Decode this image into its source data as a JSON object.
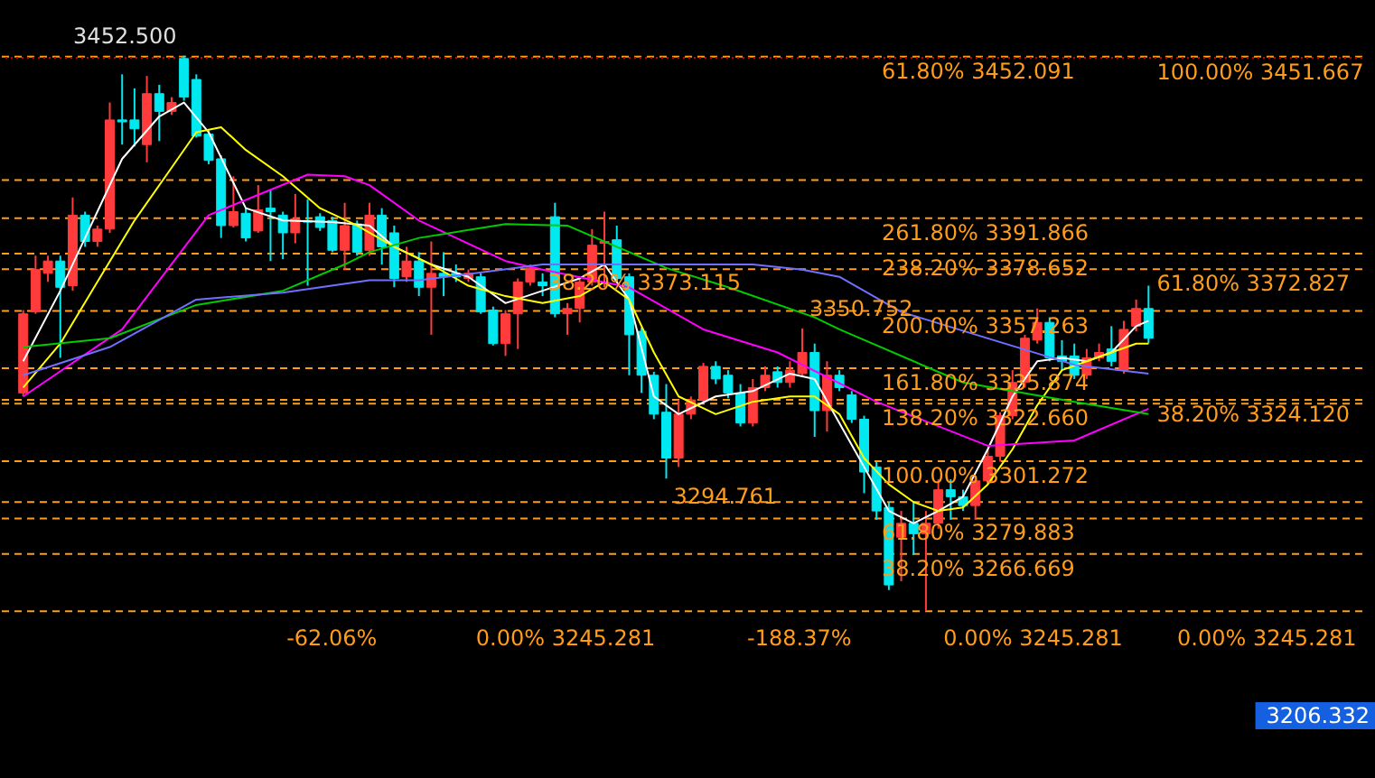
{
  "chart_data": {
    "type": "candlestick",
    "categories": [
      null,
      null,
      null,
      null,
      null,
      null,
      null,
      null,
      null,
      null,
      null,
      null,
      null,
      null,
      null,
      null,
      null,
      null,
      null,
      null,
      null,
      null,
      null,
      null,
      null,
      null,
      null,
      null,
      null,
      null,
      null,
      null,
      null,
      null,
      null,
      null,
      null,
      null,
      null,
      null,
      null,
      null,
      null,
      null,
      null,
      null,
      null,
      null,
      null,
      null,
      null,
      null,
      null,
      null,
      null,
      null,
      null,
      null,
      null,
      null,
      null,
      null,
      null,
      null,
      null,
      null,
      null,
      null,
      null,
      null,
      null,
      null,
      null,
      null,
      null,
      null,
      null,
      null,
      null,
      null,
      null,
      null,
      null,
      null,
      null,
      null,
      null,
      null,
      null,
      null,
      null,
      null
    ],
    "ohlc": [
      [
        3326.7,
        3357.6,
        3325.4,
        3356.2
      ],
      [
        3356.9,
        3377.9,
        3356.2,
        3372.7
      ],
      [
        3371.3,
        3377.9,
        3368.1,
        3375.9
      ],
      [
        3375.9,
        3377.9,
        3339.8,
        3366.1
      ],
      [
        3366.7,
        3399.6,
        3364.8,
        3393.0
      ],
      [
        3393.0,
        3394.3,
        3381.2,
        3383.2
      ],
      [
        3383.2,
        3389.1,
        3381.2,
        3387.8
      ],
      [
        3387.8,
        3435.0,
        3386.4,
        3428.5
      ],
      [
        3428.5,
        3445.5,
        3419.3,
        3427.8
      ],
      [
        3428.5,
        3440.3,
        3418.6,
        3425.2
      ],
      [
        3419.3,
        3444.9,
        3412.7,
        3438.3
      ],
      [
        3438.3,
        3441.6,
        3420.6,
        3431.7
      ],
      [
        3431.7,
        3437.0,
        3430.4,
        3435.0
      ],
      [
        3451.4,
        3452.5,
        3435.7,
        3437.0
      ],
      [
        3443.6,
        3445.5,
        3421.9,
        3422.5
      ],
      [
        3423.2,
        3424.5,
        3412.0,
        3413.4
      ],
      [
        3414.0,
        3415.3,
        3384.5,
        3389.1
      ],
      [
        3389.1,
        3407.5,
        3388.4,
        3394.3
      ],
      [
        3393.7,
        3395.6,
        3383.2,
        3384.5
      ],
      [
        3387.1,
        3404.2,
        3386.4,
        3395.0
      ],
      [
        3395.6,
        3402.2,
        3375.9,
        3394.3
      ],
      [
        3393.0,
        3394.3,
        3376.6,
        3386.4
      ],
      [
        3386.4,
        3400.9,
        3382.5,
        3391.7
      ],
      [
        3391.0,
        3398.9,
        3366.7,
        3390.4
      ],
      [
        3392.4,
        3393.7,
        3387.1,
        3388.4
      ],
      [
        3391.0,
        3392.4,
        3379.2,
        3379.9
      ],
      [
        3379.9,
        3397.6,
        3372.7,
        3389.1
      ],
      [
        3389.7,
        3391.0,
        3377.9,
        3379.2
      ],
      [
        3379.9,
        3397.6,
        3377.9,
        3393.0
      ],
      [
        3393.0,
        3395.6,
        3374.6,
        3381.2
      ],
      [
        3386.4,
        3389.1,
        3366.1,
        3369.4
      ],
      [
        3370.0,
        3381.2,
        3368.1,
        3375.9
      ],
      [
        3375.9,
        3379.2,
        3362.8,
        3366.1
      ],
      [
        3366.1,
        3383.2,
        3348.4,
        3371.3
      ],
      [
        3371.3,
        3379.2,
        3362.8,
        3370.0
      ],
      [
        3371.3,
        3374.6,
        3368.1,
        3370.0
      ],
      [
        3369.4,
        3372.7,
        3368.1,
        3371.3
      ],
      [
        3370.0,
        3371.3,
        3356.2,
        3356.9
      ],
      [
        3357.6,
        3358.9,
        3344.4,
        3345.1
      ],
      [
        3345.1,
        3357.6,
        3340.5,
        3356.2
      ],
      [
        3356.2,
        3369.4,
        3343.1,
        3368.1
      ],
      [
        3368.1,
        3374.6,
        3366.7,
        3373.3
      ],
      [
        3368.1,
        3371.3,
        3362.8,
        3366.7
      ],
      [
        3392.4,
        3397.6,
        3354.9,
        3356.2
      ],
      [
        3356.2,
        3360.2,
        3348.4,
        3358.2
      ],
      [
        3358.2,
        3369.4,
        3353.0,
        3368.1
      ],
      [
        3368.1,
        3387.8,
        3366.7,
        3381.8
      ],
      [
        3382.5,
        3394.3,
        3366.1,
        3383.2
      ],
      [
        3383.8,
        3389.1,
        3368.1,
        3369.4
      ],
      [
        3370.0,
        3371.3,
        3333.3,
        3348.4
      ],
      [
        3349.7,
        3351.0,
        3326.7,
        3333.3
      ],
      [
        3333.3,
        3334.6,
        3316.9,
        3318.8
      ],
      [
        3319.5,
        3330.0,
        3294.761,
        3302.4
      ],
      [
        3302.4,
        3324.1,
        3299.1,
        3318.8
      ],
      [
        3318.8,
        3325.4,
        3316.9,
        3324.1
      ],
      [
        3324.1,
        3337.9,
        3322.8,
        3336.6
      ],
      [
        3336.6,
        3338.5,
        3330.0,
        3331.9
      ],
      [
        3333.3,
        3335.2,
        3324.7,
        3326.7
      ],
      [
        3326.7,
        3330.0,
        3314.2,
        3315.5
      ],
      [
        3315.5,
        3331.9,
        3314.2,
        3328.7
      ],
      [
        3328.7,
        3336.6,
        3327.4,
        3333.3
      ],
      [
        3334.6,
        3336.6,
        3328.7,
        3330.6
      ],
      [
        3330.6,
        3338.5,
        3328.7,
        3335.2
      ],
      [
        3333.9,
        3350.752,
        3332.6,
        3341.8
      ],
      [
        3341.8,
        3345.1,
        3310.3,
        3320.1
      ],
      [
        3320.1,
        3338.5,
        3312.3,
        3333.3
      ],
      [
        3333.3,
        3335.2,
        3327.4,
        3328.7
      ],
      [
        3326.0,
        3327.4,
        3315.5,
        3316.9
      ],
      [
        3316.9,
        3318.2,
        3289.3,
        3297.2
      ],
      [
        3299.1,
        3301.1,
        3279.4,
        3282.7
      ],
      [
        3284.0,
        3286.0,
        3253.2,
        3255.1
      ],
      [
        3272.9,
        3282.7,
        3256.5,
        3278.1
      ],
      [
        3278.1,
        3286.0,
        3266.3,
        3274.2
      ],
      [
        3274.2,
        3282.7,
        3245.281,
        3278.1
      ],
      [
        3278.1,
        3294.5,
        3276.1,
        3290.6
      ],
      [
        3290.6,
        3294.5,
        3279.4,
        3288.0
      ],
      [
        3288.0,
        3290.6,
        3282.7,
        3284.7
      ],
      [
        3284.7,
        3295.8,
        3279.4,
        3293.9
      ],
      [
        3293.9,
        3305.7,
        3292.6,
        3303.1
      ],
      [
        3303.1,
        3319.5,
        3301.1,
        3318.2
      ],
      [
        3318.2,
        3335.2,
        3316.9,
        3330.6
      ],
      [
        3330.6,
        3348.4,
        3328.7,
        3347.1
      ],
      [
        3346.4,
        3358.2,
        3345.1,
        3353.0
      ],
      [
        3353.0,
        3354.9,
        3338.5,
        3339.8
      ],
      [
        3340.5,
        3346.4,
        3335.2,
        3338.5
      ],
      [
        3340.5,
        3345.1,
        3331.9,
        3333.3
      ],
      [
        3333.3,
        3343.1,
        3331.9,
        3339.8
      ],
      [
        3339.8,
        3345.1,
        3338.5,
        3341.8
      ],
      [
        3343.1,
        3351.6,
        3336.6,
        3338.5
      ],
      [
        3335.2,
        3353.6,
        3333.9,
        3350.4
      ],
      [
        3351.6,
        3361.5,
        3349.7,
        3358.2
      ],
      [
        3358.2,
        3366.7,
        3345.1,
        3347.1
      ]
    ],
    "colors": [
      "#ff3b3b",
      "#ff3b3b",
      "#ff3b3b",
      "#00e8f0",
      "#ff3b3b",
      "#00e8f0",
      "#ff3b3b",
      "#ff3b3b",
      "#00e8f0",
      "#00e8f0",
      "#ff3b3b",
      "#00e8f0",
      "#ff3b3b",
      "#00e8f0",
      "#00e8f0",
      "#00e8f0",
      "#00e8f0",
      "#ff3b3b",
      "#00e8f0",
      "#ff3b3b",
      "#00e8f0",
      "#00e8f0",
      "#ff3b3b",
      "#00e8f0",
      "#00e8f0",
      "#00e8f0",
      "#ff3b3b",
      "#00e8f0",
      "#ff3b3b",
      "#00e8f0",
      "#00e8f0",
      "#ff3b3b",
      "#00e8f0",
      "#ff3b3b",
      "#00e8f0",
      "#00e8f0",
      "#ff3b3b",
      "#00e8f0",
      "#00e8f0",
      "#ff3b3b",
      "#ff3b3b",
      "#ff3b3b",
      "#00e8f0",
      "#00e8f0",
      "#ff3b3b",
      "#ff3b3b",
      "#ff3b3b",
      "#ff3b3b",
      "#00e8f0",
      "#00e8f0",
      "#00e8f0",
      "#00e8f0",
      "#00e8f0",
      "#ff3b3b",
      "#ff3b3b",
      "#ff3b3b",
      "#00e8f0",
      "#00e8f0",
      "#00e8f0",
      "#ff3b3b",
      "#ff3b3b",
      "#00e8f0",
      "#ff3b3b",
      "#ff3b3b",
      "#00e8f0",
      "#ff3b3b",
      "#00e8f0",
      "#00e8f0",
      "#00e8f0",
      "#00e8f0",
      "#00e8f0",
      "#ff3b3b",
      "#00e8f0",
      "#ff3b3b",
      "#ff3b3b",
      "#00e8f0",
      "#00e8f0",
      "#ff3b3b",
      "#ff3b3b",
      "#ff3b3b",
      "#ff3b3b",
      "#ff3b3b",
      "#ff3b3b",
      "#00e8f0",
      "#00e8f0",
      "#00e8f0",
      "#ff3b3b",
      "#ff3b3b",
      "#00e8f0",
      "#ff3b3b",
      "#ff3b3b",
      "#00e8f0"
    ],
    "series": [
      {
        "type": "line",
        "color": "#ffffff",
        "values": [
          3338.5,
          null,
          null,
          3364.8,
          null,
          3384.5,
          null,
          null,
          3414.0,
          null,
          null,
          3429.8,
          null,
          3435.0,
          null,
          3423.9,
          null,
          null,
          3395.6,
          null,
          null,
          3391.0,
          null,
          null,
          null,
          3390.4,
          null,
          null,
          3389.1,
          null,
          3381.2,
          null,
          null,
          3374.6,
          null,
          null,
          3370.0,
          null,
          null,
          3360.2,
          null,
          null,
          3364.8,
          null,
          null,
          3369.4,
          null,
          3374.6,
          null,
          3361.5,
          null,
          3325.4,
          null,
          3318.8,
          null,
          null,
          3325.4,
          null,
          null,
          3327.4,
          null,
          null,
          3333.9,
          null,
          3331.9,
          null,
          3315.5,
          null,
          3299.1,
          null,
          3282.7,
          null,
          3278.1,
          null,
          3282.7,
          null,
          3288.0,
          null,
          3305.7,
          null,
          3325.4,
          null,
          3338.5,
          null,
          3339.8,
          null,
          3338.5,
          null,
          3341.8,
          null,
          3351.6,
          3353.6
        ]
      },
      {
        "type": "line",
        "color": "#ffff00",
        "values": [
          3328.7,
          null,
          null,
          3345.1,
          null,
          null,
          3368.1,
          null,
          null,
          3391.0,
          null,
          null,
          3410.7,
          null,
          3423.9,
          null,
          3425.8,
          null,
          3417.3,
          null,
          null,
          3407.5,
          null,
          null,
          3395.6,
          null,
          null,
          3389.1,
          null,
          null,
          3381.2,
          null,
          null,
          3374.6,
          null,
          null,
          3366.7,
          null,
          null,
          3362.8,
          null,
          null,
          3360.2,
          null,
          null,
          3362.8,
          null,
          3368.1,
          null,
          3361.5,
          null,
          3341.8,
          null,
          3325.4,
          null,
          null,
          3318.8,
          null,
          null,
          3323.4,
          null,
          null,
          3325.4,
          null,
          3325.4,
          null,
          3318.8,
          null,
          3302.4,
          null,
          3292.6,
          null,
          3286.0,
          null,
          3282.7,
          null,
          3284.0,
          null,
          3292.6,
          null,
          3305.7,
          null,
          3322.1,
          null,
          3335.2,
          null,
          3338.5,
          null,
          3341.8,
          null,
          3345.1,
          3345.1
        ]
      },
      {
        "type": "line",
        "color": "#ff00ff",
        "values": [
          3325.4,
          null,
          null,
          null,
          null,
          null,
          null,
          null,
          3350.4,
          null,
          null,
          null,
          null,
          null,
          null,
          3393.0,
          null,
          null,
          null,
          null,
          null,
          null,
          null,
          3408.1,
          null,
          null,
          3407.5,
          null,
          3404.2,
          null,
          null,
          null,
          3391.0,
          null,
          null,
          null,
          null,
          null,
          null,
          3375.9,
          null,
          null,
          3372.7,
          null,
          null,
          null,
          null,
          null,
          null,
          3366.1,
          null,
          null,
          null,
          null,
          null,
          3350.4,
          null,
          null,
          null,
          null,
          null,
          3341.8,
          null,
          null,
          null,
          null,
          null,
          null,
          null,
          3323.4,
          null,
          null,
          null,
          null,
          null,
          null,
          null,
          null,
          3307.0,
          null,
          null,
          null,
          null,
          null,
          null,
          3309.0,
          null,
          null,
          null,
          null,
          null,
          3320.8
        ]
      },
      {
        "type": "line",
        "color": "#00cc00",
        "values": [
          3343.8,
          null,
          null,
          null,
          null,
          null,
          null,
          3347.1,
          null,
          null,
          null,
          null,
          null,
          null,
          3359.5,
          null,
          null,
          null,
          null,
          null,
          null,
          3364.8,
          null,
          null,
          null,
          null,
          3374.6,
          null,
          3379.2,
          null,
          null,
          null,
          3384.5,
          null,
          null,
          null,
          null,
          null,
          null,
          3389.7,
          null,
          null,
          null,
          null,
          3389.1,
          null,
          null,
          null,
          null,
          null,
          null,
          null,
          3373.3,
          null,
          null,
          null,
          null,
          3366.1,
          null,
          null,
          null,
          null,
          null,
          null,
          3354.9,
          null,
          3350.4,
          null,
          null,
          null,
          null,
          null,
          null,
          null,
          null,
          null,
          3330.6,
          null,
          null,
          null,
          null,
          null,
          null,
          null,
          null,
          3323.4,
          null,
          null,
          null,
          null,
          null,
          3318.8
        ]
      },
      {
        "type": "line",
        "color": "#7070ff",
        "values": [
          3333.3,
          null,
          null,
          null,
          null,
          null,
          null,
          3343.8,
          null,
          null,
          null,
          null,
          null,
          null,
          3361.5,
          null,
          null,
          null,
          null,
          null,
          null,
          3364.1,
          null,
          null,
          null,
          null,
          null,
          null,
          3368.7,
          null,
          null,
          null,
          3368.7,
          null,
          null,
          null,
          null,
          null,
          null,
          null,
          null,
          null,
          3374.6,
          null,
          null,
          null,
          null,
          null,
          null,
          null,
          null,
          null,
          null,
          null,
          null,
          null,
          null,
          null,
          null,
          3374.6,
          null,
          null,
          null,
          3372.7,
          null,
          null,
          3370.0,
          null,
          null,
          null,
          null,
          3356.9,
          null,
          null,
          null,
          null,
          null,
          null,
          null,
          null,
          null,
          null,
          null,
          null,
          null,
          3337.2,
          null,
          null,
          null,
          null,
          null,
          3333.9
        ]
      }
    ],
    "ref_lines": [
      {
        "axis": "y",
        "value": 3391.866,
        "label": "261.80%   3391.866",
        "color": "#ff9c1a",
        "line_style": "dashed"
      },
      {
        "axis": "y",
        "value": 3378.652,
        "label": "238.20%   3378.652",
        "color": "#ff9c1a",
        "line_style": "dashed"
      },
      {
        "axis": "y",
        "value": 3357.263,
        "label": "200.00%   3357.263",
        "color": "#ff9c1a",
        "line_style": "dashed"
      },
      {
        "axis": "y",
        "value": 3335.874,
        "label": "161.80%   3335.874",
        "color": "#ff9c1a",
        "line_style": "dashed"
      },
      {
        "axis": "y",
        "value": 3322.66,
        "label": "138.20%   3322.660",
        "color": "#ff9c1a",
        "line_style": "dashed"
      },
      {
        "axis": "y",
        "value": 3301.272,
        "label": "100.00%   3301.272",
        "color": "#ff9c1a",
        "line_style": "dashed"
      },
      {
        "axis": "y",
        "value": 3279.883,
        "label": "61.80%   3279.883",
        "color": "#ff9c1a",
        "line_style": "dashed"
      },
      {
        "axis": "y",
        "value": 3266.669,
        "label": "38.20%   3266.669",
        "color": "#ff9c1a",
        "line_style": "dashed"
      },
      {
        "axis": "y",
        "value": 3372.827,
        "label": "61.80%   3372.827",
        "color": "#ff9c1a",
        "line_style": "dashed"
      },
      {
        "axis": "y",
        "value": 3324.12,
        "label": "38.20%   3324.120",
        "color": "#ff9c1a",
        "line_style": "dashed"
      },
      {
        "axis": "y",
        "value": 3452.091,
        "label": "61.80%   3452.091",
        "color": "#ff9c1a",
        "line_style": "dashed"
      },
      {
        "axis": "y",
        "value": 3451.667,
        "label": "100.00%   3451.667",
        "color": "#cc0000",
        "line_style": "dotted"
      },
      {
        "axis": "y",
        "value": 3406.1,
        "color": "#ff9c1a",
        "line_style": "dashed"
      },
      {
        "axis": "y",
        "value": 3286.0,
        "color": "#ff9c1a",
        "line_style": "dashed"
      },
      {
        "axis": "y",
        "value": 3245.281,
        "color": "#ff9c1a",
        "line_style": "dashed"
      }
    ],
    "annotations": [
      "-62.06%",
      "0.00%   3245.281",
      "-188.37%",
      "0.00%   3245.281",
      "0.00%   3245.281",
      {
        "text": "3452.500",
        "y": 3452.5
      },
      {
        "text": "3350.752",
        "y": 3350.752
      },
      {
        "text": "38.20%   3373.115",
        "y": 3373.115
      },
      "3294.761",
      "3206.332"
    ],
    "tick_labels": false,
    "marker": "none"
  }
}
